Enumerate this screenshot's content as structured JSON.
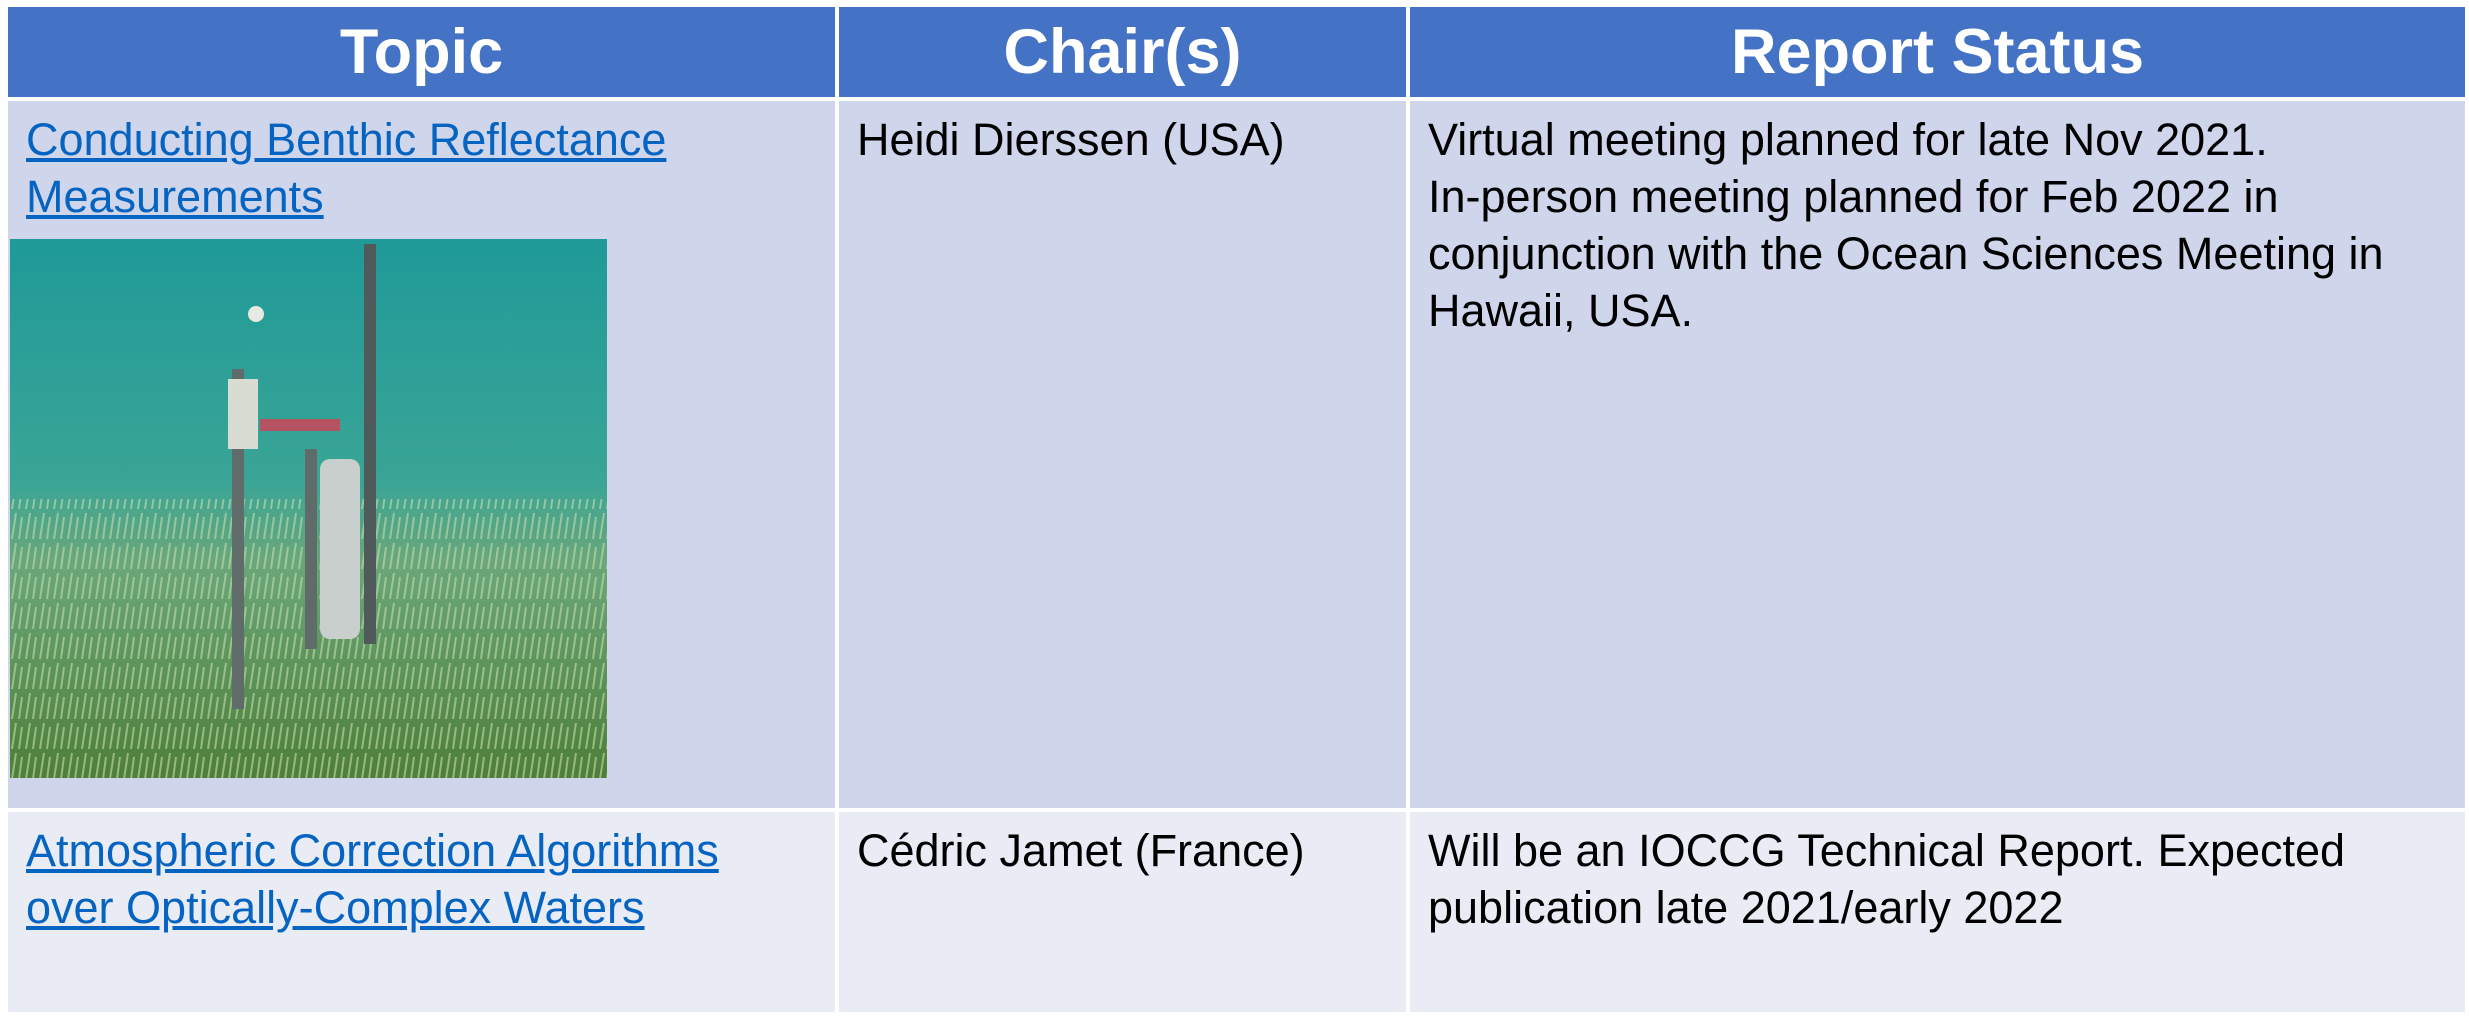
{
  "table": {
    "header": [
      "Topic",
      "Chair(s)",
      "Report Status"
    ],
    "rows": [
      {
        "topic": "Conducting Benthic Reflectance Measurements",
        "chair": "Heidi Dierssen (USA)",
        "status": [
          "Virtual meeting planned for late Nov 2021.",
          "In-person meeting planned for Feb 2022 in conjunction with the Ocean Sciences Meeting in Hawaii, USA."
        ]
      },
      {
        "topic": "Atmospheric Correction Algorithms over Optically-Complex Waters",
        "chair": "Cédric Jamet (France)",
        "status": [
          "Will be an IOCCG Technical Report. Expected publication late 2021/early 2022"
        ]
      }
    ]
  }
}
